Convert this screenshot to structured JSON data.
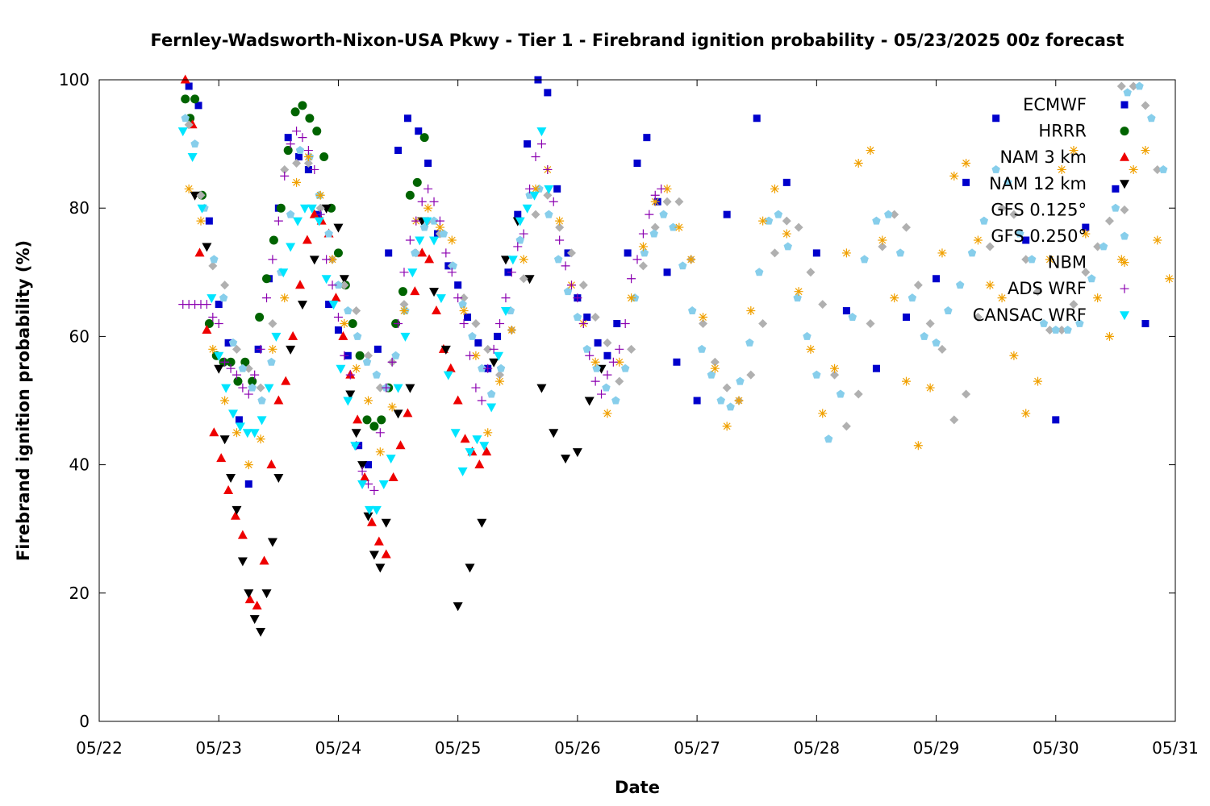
{
  "chart_data": {
    "type": "scatter",
    "title": "Fernley-Wadsworth-Nixon-USA Pkwy - Tier 1 - Firebrand ignition probability - 05/23/2025 00z forecast",
    "xlabel": "Date",
    "ylabel": "Firebrand ignition probability (%)",
    "x_ticks": [
      "05/22",
      "05/23",
      "05/24",
      "05/25",
      "05/26",
      "05/27",
      "05/28",
      "05/29",
      "05/30",
      "05/31"
    ],
    "y_ticks": [
      0,
      20,
      40,
      60,
      80,
      100
    ],
    "xlim_days": [
      0,
      9
    ],
    "x_unit": "days since 05/22 00z",
    "ylim": [
      0,
      100
    ],
    "grid": false,
    "legend_position": "top-right",
    "series": [
      {
        "name": "ECMWF",
        "color": "#0000cc",
        "marker": "square",
        "x": [
          0.75,
          0.83,
          0.92,
          1.0,
          1.08,
          1.17,
          1.25,
          1.33,
          1.42,
          1.5,
          1.58,
          1.67,
          1.75,
          1.83,
          1.92,
          2.0,
          2.08,
          2.17,
          2.25,
          2.33,
          2.42,
          2.5,
          2.58,
          2.67,
          2.75,
          2.83,
          2.92,
          3.0,
          3.08,
          3.17,
          3.25,
          3.33,
          3.42,
          3.5,
          3.58,
          3.67,
          3.75,
          3.83,
          3.92,
          4.0,
          4.08,
          4.17,
          4.25,
          4.33,
          4.42,
          4.5,
          4.58,
          4.67,
          4.75,
          4.83,
          5.0,
          5.25,
          5.5,
          5.75,
          6.0,
          6.25,
          6.5,
          6.75,
          7.0,
          7.25,
          7.5,
          7.75,
          8.0,
          8.25,
          8.5,
          8.75
        ],
        "y": [
          99,
          96,
          78,
          65,
          59,
          47,
          37,
          58,
          69,
          80,
          91,
          88,
          86,
          79,
          65,
          61,
          57,
          43,
          40,
          58,
          73,
          89,
          94,
          92,
          87,
          76,
          71,
          68,
          63,
          59,
          55,
          60,
          70,
          79,
          90,
          100,
          98,
          83,
          73,
          66,
          63,
          59,
          57,
          62,
          73,
          87,
          91,
          81,
          70,
          56,
          50,
          79,
          94,
          84,
          73,
          64,
          55,
          63,
          69,
          84,
          94,
          75,
          47,
          77,
          83,
          62
        ]
      },
      {
        "name": "HRRR",
        "color": "#006400",
        "marker": "circle",
        "x": [
          0.72,
          0.76,
          0.8,
          0.86,
          0.92,
          0.98,
          1.04,
          1.1,
          1.16,
          1.22,
          1.28,
          1.34,
          1.4,
          1.46,
          1.52,
          1.58,
          1.64,
          1.7,
          1.76,
          1.82,
          1.88,
          1.94,
          2.0,
          2.06,
          2.12,
          2.18,
          2.24,
          2.3,
          2.36,
          2.42,
          2.48,
          2.54,
          2.6,
          2.66,
          2.72
        ],
        "y": [
          97,
          94,
          97,
          82,
          62,
          57,
          56,
          56,
          53,
          56,
          53,
          63,
          69,
          75,
          80,
          89,
          95,
          96,
          94,
          92,
          88,
          80,
          73,
          68,
          62,
          57,
          47,
          46,
          47,
          52,
          62,
          67,
          82,
          84,
          91
        ]
      },
      {
        "name": "NAM 3 km",
        "color": "#ee0000",
        "marker": "triangle-up",
        "x": [
          0.72,
          0.78,
          0.84,
          0.9,
          0.96,
          1.02,
          1.08,
          1.14,
          1.2,
          1.26,
          1.32,
          1.38,
          1.44,
          1.5,
          1.56,
          1.62,
          1.68,
          1.74,
          1.8,
          1.86,
          1.92,
          1.98,
          2.04,
          2.1,
          2.16,
          2.22,
          2.28,
          2.34,
          2.4,
          2.46,
          2.52,
          2.58,
          2.64,
          2.7,
          2.76,
          2.82,
          2.88,
          2.94,
          3.0,
          3.06,
          3.12,
          3.18,
          3.24
        ],
        "y": [
          100,
          93,
          73,
          61,
          45,
          41,
          36,
          32,
          29,
          19,
          18,
          25,
          40,
          50,
          53,
          60,
          68,
          75,
          79,
          78,
          76,
          66,
          60,
          54,
          47,
          38,
          31,
          28,
          26,
          38,
          43,
          48,
          67,
          73,
          72,
          64,
          58,
          55,
          50,
          44,
          42,
          40,
          42
        ]
      },
      {
        "name": "NAM 12 km",
        "color": "#000000",
        "marker": "triangle-down",
        "x": [
          0.8,
          0.9,
          1.0,
          1.05,
          1.1,
          1.15,
          1.2,
          1.25,
          1.3,
          1.35,
          1.4,
          1.45,
          1.5,
          1.6,
          1.7,
          1.8,
          1.9,
          2.0,
          2.05,
          2.1,
          2.15,
          2.2,
          2.25,
          2.3,
          2.35,
          2.4,
          2.5,
          2.6,
          2.7,
          2.8,
          2.9,
          3.0,
          3.1,
          3.2,
          3.3,
          3.4,
          3.5,
          3.6,
          3.7,
          3.8,
          3.9,
          4.0,
          4.1,
          4.2
        ],
        "y": [
          82,
          74,
          55,
          44,
          38,
          33,
          25,
          20,
          16,
          14,
          20,
          28,
          38,
          58,
          65,
          72,
          80,
          77,
          69,
          51,
          45,
          40,
          32,
          26,
          24,
          31,
          48,
          52,
          78,
          67,
          58,
          18,
          24,
          31,
          56,
          72,
          78,
          69,
          52,
          45,
          41,
          42,
          50,
          55
        ]
      },
      {
        "name": "GFS 0.125°",
        "color": "#b0b0b0",
        "marker": "diamond",
        "x": [
          0.75,
          0.85,
          0.95,
          1.05,
          1.15,
          1.25,
          1.35,
          1.45,
          1.55,
          1.65,
          1.75,
          1.85,
          1.95,
          2.05,
          2.15,
          2.25,
          2.35,
          2.45,
          2.55,
          2.65,
          2.75,
          2.85,
          2.95,
          3.05,
          3.15,
          3.25,
          3.35,
          3.45,
          3.55,
          3.65,
          3.75,
          3.85,
          3.95,
          4.05,
          4.15,
          4.25,
          4.35,
          4.45,
          4.55,
          4.65,
          4.75,
          4.85,
          4.95,
          5.05,
          5.15,
          5.25,
          5.35,
          5.45,
          5.55,
          5.65,
          5.75,
          5.85,
          5.95,
          6.05,
          6.15,
          6.25,
          6.35,
          6.45,
          6.55,
          6.65,
          6.75,
          6.85,
          6.95,
          7.05,
          7.15,
          7.25,
          7.35,
          7.45,
          7.55,
          7.65,
          7.75,
          7.85,
          7.95,
          8.05,
          8.15,
          8.25,
          8.35,
          8.45,
          8.55,
          8.65,
          8.75,
          8.85
        ],
        "y": [
          93,
          82,
          71,
          68,
          58,
          55,
          52,
          62,
          86,
          87,
          87,
          80,
          72,
          68,
          64,
          57,
          52,
          56,
          65,
          73,
          78,
          76,
          71,
          66,
          62,
          58,
          54,
          61,
          69,
          79,
          82,
          77,
          73,
          68,
          63,
          59,
          53,
          58,
          71,
          77,
          81,
          81,
          72,
          62,
          56,
          52,
          50,
          54,
          62,
          73,
          78,
          77,
          70,
          65,
          54,
          46,
          51,
          62,
          74,
          79,
          77,
          68,
          62,
          58,
          47,
          51,
          63,
          74,
          80,
          79,
          72,
          67,
          61,
          61,
          65,
          70,
          74,
          78,
          99,
          99,
          96,
          86
        ]
      },
      {
        "name": "GFS 0.250°",
        "color": "#87ceeb",
        "marker": "pentagon",
        "x": [
          0.72,
          0.8,
          0.88,
          0.96,
          1.04,
          1.12,
          1.2,
          1.28,
          1.36,
          1.44,
          1.52,
          1.6,
          1.68,
          1.76,
          1.84,
          1.92,
          2.0,
          2.08,
          2.16,
          2.24,
          2.32,
          2.4,
          2.48,
          2.56,
          2.64,
          2.72,
          2.8,
          2.88,
          2.96,
          3.04,
          3.12,
          3.2,
          3.28,
          3.36,
          3.44,
          3.52,
          3.6,
          3.68,
          3.76,
          3.84,
          3.92,
          4.0,
          4.08,
          4.16,
          4.24,
          4.32,
          4.4,
          4.48,
          4.56,
          4.64,
          4.72,
          4.8,
          4.88,
          4.96,
          5.04,
          5.12,
          5.2,
          5.28,
          5.36,
          5.44,
          5.52,
          5.6,
          5.68,
          5.76,
          5.84,
          5.92,
          6.0,
          6.1,
          6.2,
          6.3,
          6.4,
          6.5,
          6.6,
          6.7,
          6.8,
          6.9,
          7.0,
          7.1,
          7.2,
          7.3,
          7.4,
          7.5,
          7.6,
          7.7,
          7.8,
          7.9,
          8.0,
          8.1,
          8.2,
          8.3,
          8.4,
          8.5,
          8.6,
          8.7,
          8.8,
          8.9
        ],
        "y": [
          94,
          90,
          80,
          72,
          66,
          59,
          55,
          52,
          50,
          56,
          70,
          79,
          89,
          88,
          82,
          76,
          68,
          64,
          60,
          56,
          54,
          52,
          57,
          64,
          73,
          77,
          78,
          76,
          71,
          65,
          60,
          55,
          51,
          55,
          64,
          75,
          82,
          83,
          79,
          72,
          67,
          63,
          58,
          55,
          52,
          50,
          55,
          66,
          73,
          76,
          79,
          77,
          71,
          64,
          58,
          54,
          50,
          49,
          53,
          59,
          70,
          78,
          79,
          74,
          66,
          60,
          54,
          44,
          51,
          63,
          72,
          78,
          79,
          73,
          66,
          60,
          59,
          64,
          68,
          73,
          78,
          86,
          84,
          76,
          72,
          62,
          61,
          61,
          62,
          69,
          74,
          80,
          98,
          99,
          94,
          86
        ]
      },
      {
        "name": "NBM",
        "color": "#f0a000",
        "marker": "star",
        "x": [
          0.75,
          0.85,
          0.95,
          1.05,
          1.15,
          1.25,
          1.35,
          1.45,
          1.55,
          1.65,
          1.75,
          1.85,
          1.95,
          2.05,
          2.15,
          2.25,
          2.35,
          2.45,
          2.55,
          2.65,
          2.75,
          2.85,
          2.95,
          3.05,
          3.15,
          3.25,
          3.35,
          3.45,
          3.55,
          3.65,
          3.75,
          3.85,
          3.95,
          4.05,
          4.15,
          4.25,
          4.35,
          4.45,
          4.55,
          4.65,
          4.75,
          4.85,
          4.95,
          5.05,
          5.15,
          5.25,
          5.35,
          5.45,
          5.55,
          5.65,
          5.75,
          5.85,
          5.95,
          6.05,
          6.15,
          6.25,
          6.35,
          6.45,
          6.55,
          6.65,
          6.75,
          6.85,
          6.95,
          7.05,
          7.15,
          7.25,
          7.35,
          7.45,
          7.55,
          7.65,
          7.75,
          7.85,
          7.95,
          8.05,
          8.15,
          8.25,
          8.35,
          8.45,
          8.55,
          8.65,
          8.75,
          8.85,
          8.95
        ],
        "y": [
          83,
          78,
          58,
          50,
          45,
          40,
          44,
          58,
          66,
          84,
          88,
          82,
          72,
          62,
          55,
          50,
          42,
          49,
          64,
          78,
          80,
          77,
          75,
          64,
          57,
          45,
          53,
          61,
          72,
          83,
          86,
          78,
          68,
          62,
          56,
          48,
          56,
          66,
          74,
          81,
          83,
          77,
          72,
          63,
          55,
          46,
          50,
          64,
          78,
          83,
          76,
          67,
          58,
          48,
          55,
          73,
          87,
          89,
          75,
          66,
          53,
          43,
          52,
          73,
          85,
          87,
          75,
          68,
          66,
          57,
          48,
          53,
          72,
          86,
          89,
          76,
          66,
          60,
          72,
          86,
          89,
          75,
          69
        ]
      },
      {
        "name": "ADS WRF",
        "color": "#8b00b0",
        "marker": "plus",
        "x": [
          0.7,
          0.75,
          0.8,
          0.85,
          0.9,
          0.95,
          1.0,
          1.05,
          1.1,
          1.15,
          1.2,
          1.25,
          1.3,
          1.35,
          1.4,
          1.45,
          1.5,
          1.55,
          1.6,
          1.65,
          1.7,
          1.75,
          1.8,
          1.85,
          1.9,
          1.95,
          2.0,
          2.05,
          2.1,
          2.15,
          2.2,
          2.25,
          2.3,
          2.35,
          2.4,
          2.45,
          2.5,
          2.55,
          2.6,
          2.65,
          2.7,
          2.75,
          2.8,
          2.85,
          2.9,
          2.95,
          3.0,
          3.05,
          3.1,
          3.15,
          3.2,
          3.25,
          3.3,
          3.35,
          3.4,
          3.45,
          3.5,
          3.55,
          3.6,
          3.65,
          3.7,
          3.75,
          3.8,
          3.85,
          3.9,
          3.95,
          4.0,
          4.05,
          4.1,
          4.15,
          4.2,
          4.25,
          4.3,
          4.35,
          4.4,
          4.45,
          4.5,
          4.55,
          4.6,
          4.65,
          4.7
        ],
        "y": [
          65,
          65,
          65,
          65,
          65,
          63,
          62,
          56,
          55,
          54,
          52,
          51,
          54,
          58,
          66,
          72,
          78,
          85,
          90,
          92,
          91,
          89,
          86,
          79,
          72,
          68,
          63,
          57,
          54,
          43,
          39,
          37,
          36,
          45,
          52,
          56,
          62,
          70,
          75,
          78,
          81,
          83,
          81,
          78,
          73,
          70,
          66,
          62,
          57,
          52,
          50,
          55,
          58,
          62,
          66,
          70,
          74,
          76,
          83,
          88,
          90,
          86,
          81,
          75,
          71,
          68,
          66,
          62,
          57,
          53,
          51,
          54,
          56,
          58,
          62,
          69,
          72,
          76,
          79,
          82,
          83
        ]
      },
      {
        "name": "CANSAC WRF",
        "color": "#00e5ff",
        "marker": "triangle-down",
        "x": [
          0.7,
          0.78,
          0.86,
          0.94,
          1.0,
          1.06,
          1.12,
          1.18,
          1.24,
          1.3,
          1.36,
          1.42,
          1.48,
          1.54,
          1.6,
          1.66,
          1.72,
          1.78,
          1.84,
          1.9,
          1.96,
          2.02,
          2.08,
          2.14,
          2.2,
          2.26,
          2.32,
          2.38,
          2.44,
          2.5,
          2.56,
          2.62,
          2.68,
          2.74,
          2.8,
          2.86,
          2.92,
          2.98,
          3.04,
          3.1,
          3.16,
          3.22,
          3.28,
          3.34,
          3.4,
          3.46,
          3.52,
          3.58,
          3.64,
          3.7,
          3.76
        ],
        "y": [
          92,
          88,
          80,
          66,
          57,
          52,
          48,
          46,
          45,
          45,
          47,
          52,
          60,
          70,
          74,
          78,
          80,
          80,
          78,
          69,
          65,
          55,
          50,
          43,
          37,
          33,
          33,
          37,
          41,
          52,
          60,
          70,
          75,
          78,
          75,
          66,
          54,
          45,
          39,
          42,
          44,
          43,
          49,
          57,
          64,
          72,
          78,
          80,
          82,
          92,
          83
        ]
      }
    ]
  }
}
